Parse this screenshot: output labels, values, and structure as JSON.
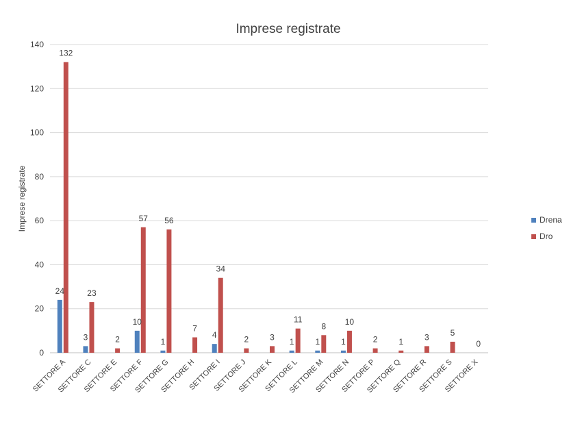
{
  "chart_data": {
    "type": "bar",
    "title": "Imprese registrate",
    "xlabel": "",
    "ylabel": "Imprese registrate",
    "ylim": [
      0,
      140
    ],
    "yticks": [
      0,
      20,
      40,
      60,
      80,
      100,
      120,
      140
    ],
    "grid": true,
    "legend_position": "right",
    "categories": [
      "SETTORE A",
      "SETTORE C",
      "SETTORE E",
      "SETTORE F",
      "SETTORE G",
      "SETTORE H",
      "SETTORE I",
      "SETTORE J",
      "SETTORE K",
      "SETTORE L",
      "SETTORE M",
      "SETTORE N",
      "SETTORE P",
      "SETTORE Q",
      "SETTORE R",
      "SETTORE S",
      "SETTORE X"
    ],
    "series": [
      {
        "name": "Drena",
        "color": "#4F81BD",
        "values": [
          24,
          3,
          null,
          10,
          1,
          null,
          4,
          null,
          null,
          1,
          1,
          1,
          null,
          null,
          null,
          null,
          null
        ],
        "labels": [
          "24",
          "3",
          "",
          "10",
          "1",
          "",
          "4",
          "",
          "",
          "1",
          "1",
          "1",
          "",
          "",
          "",
          "",
          ""
        ]
      },
      {
        "name": "Dro",
        "color": "#C0504D",
        "values": [
          132,
          23,
          2,
          57,
          56,
          7,
          34,
          2,
          3,
          11,
          8,
          10,
          2,
          1,
          3,
          5,
          0
        ],
        "labels": [
          "132",
          "23",
          "2",
          "57",
          "56",
          "7",
          "34",
          "2",
          "3",
          "11",
          "8",
          "10",
          "2",
          "1",
          "3",
          "5",
          "0"
        ]
      }
    ]
  }
}
